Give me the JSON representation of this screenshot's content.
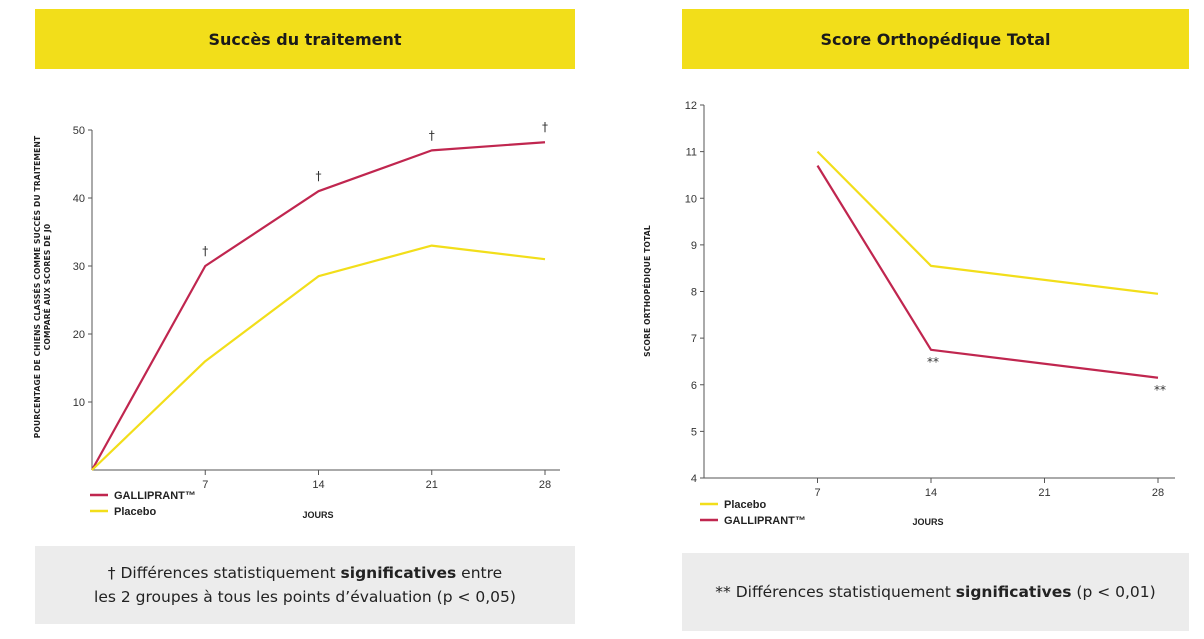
{
  "chart_data": [
    {
      "type": "line",
      "title": "Succès du traitement",
      "ylabel_line1": "POURCENTAGE DE CHIENS CLASSÉS COMME SUCCÈS DU TRAITEMENT",
      "ylabel_line2": "COMPARÉ AUX SCORES DE J0",
      "xlabel": "JOURS",
      "x_ticks": [
        7,
        14,
        21,
        28
      ],
      "y_ticks": [
        10,
        20,
        30,
        40,
        50
      ],
      "xlim": [
        0,
        28
      ],
      "ylim": [
        0,
        50
      ],
      "series": [
        {
          "name": "GALLIPRANT™",
          "color": "#c0264f",
          "x": [
            0,
            7,
            14,
            21,
            28
          ],
          "y": [
            0,
            30,
            41,
            47,
            48.2
          ]
        },
        {
          "name": "Placebo",
          "color": "#f2de1a",
          "x": [
            0,
            7,
            14,
            21,
            28
          ],
          "y": [
            0,
            16,
            28.5,
            33,
            31
          ]
        }
      ],
      "significance_marker": "†",
      "significance_x": [
        7,
        14,
        21,
        28
      ],
      "legend_order": [
        0,
        1
      ],
      "note_parts": [
        "† Différences statistiquement ",
        "significatives",
        " entre",
        "les 2 groupes à tous les points d’évaluation (p < 0,05)"
      ]
    },
    {
      "type": "line",
      "title": "Score Orthopédique Total",
      "ylabel": "SCORE ORTHOPÉDIQUE TOTAL",
      "xlabel": "JOURS",
      "x_ticks": [
        7,
        14,
        21,
        28
      ],
      "y_ticks": [
        4,
        5,
        6,
        7,
        8,
        9,
        10,
        11,
        12
      ],
      "xlim": [
        0,
        28
      ],
      "ylim": [
        4,
        12
      ],
      "series": [
        {
          "name": "Placebo",
          "color": "#f2de1a",
          "x": [
            7,
            14,
            28
          ],
          "y": [
            11,
            8.55,
            7.95
          ]
        },
        {
          "name": "GALLIPRANT™",
          "color": "#c0264f",
          "x": [
            7,
            14,
            28
          ],
          "y": [
            10.7,
            6.75,
            6.15
          ]
        }
      ],
      "significance_marker": "**",
      "significance_x": [
        14,
        28
      ],
      "legend_order": [
        0,
        1
      ],
      "note_parts": [
        "** Différences statistiquement ",
        "significatives",
        " (p < 0,01)"
      ]
    }
  ]
}
